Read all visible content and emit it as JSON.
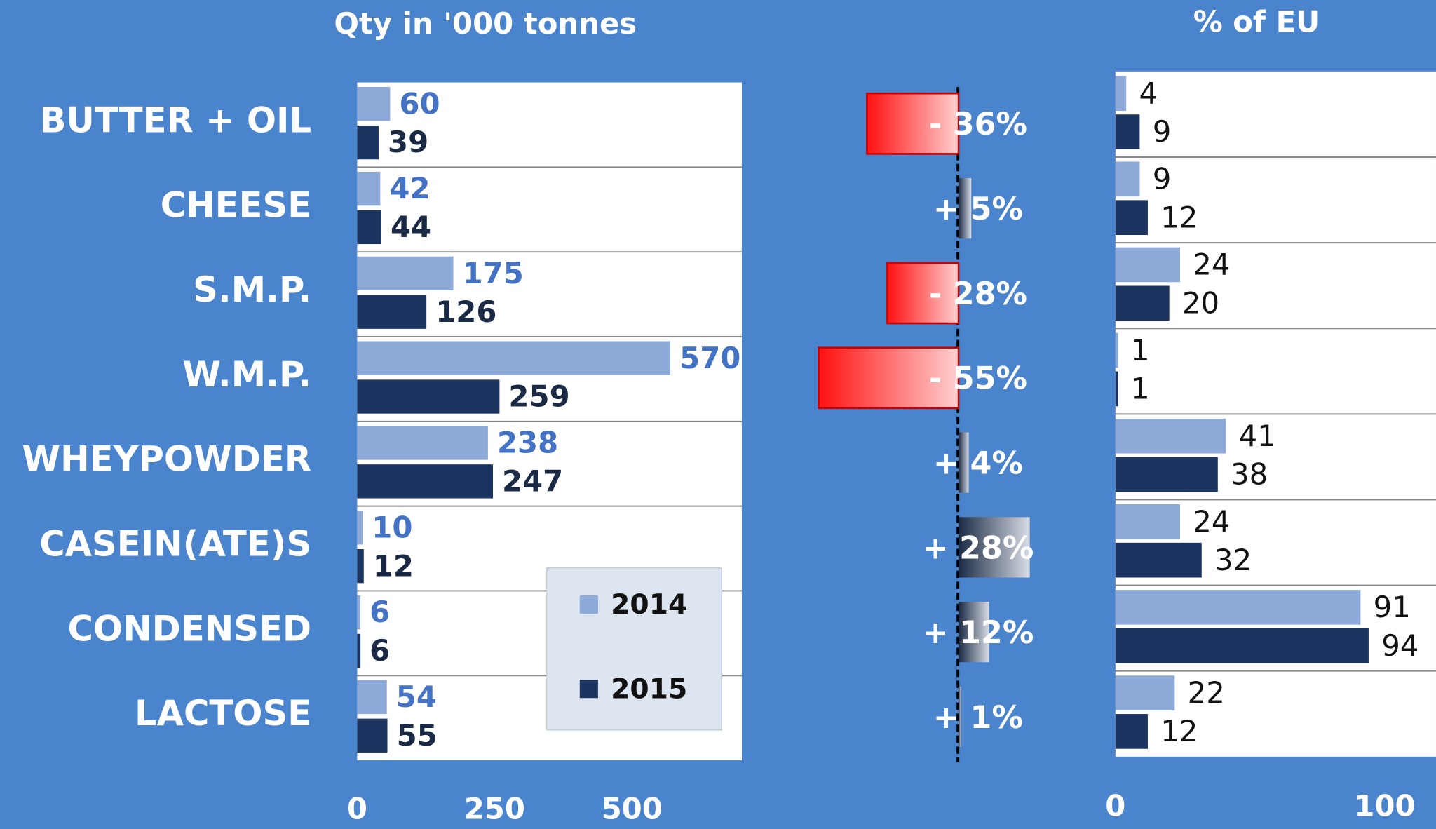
{
  "chart_data": [
    {
      "type": "bar",
      "orientation": "horizontal",
      "title": "Qty in '000 tonnes",
      "categories": [
        "BUTTER + OIL",
        "CHEESE",
        "S.M.P.",
        "W.M.P.",
        "WHEYPOWDER",
        "CASEIN(ATE)S",
        "CONDENSED",
        "LACTOSE"
      ],
      "series": [
        {
          "name": "2014",
          "color": "#8eaad8",
          "values": [
            60,
            42,
            175,
            570,
            238,
            10,
            6,
            54
          ]
        },
        {
          "name": "2015",
          "color": "#1b3560",
          "values": [
            39,
            44,
            126,
            259,
            247,
            12,
            6,
            55
          ]
        }
      ],
      "xlim": [
        0,
        700
      ],
      "xticks": [
        0,
        250,
        500
      ],
      "legend": "lower right"
    },
    {
      "type": "bar",
      "orientation": "horizontal",
      "values": [
        -36,
        5,
        -28,
        -55,
        4,
        28,
        12,
        1
      ],
      "value_labels": [
        "- 36%",
        "+ 5%",
        "- 28%",
        "- 55%",
        "+ 4%",
        "+ 28%",
        "+ 12%",
        "+ 1%"
      ],
      "xlim": [
        -60,
        30
      ]
    },
    {
      "type": "bar",
      "orientation": "horizontal",
      "title": "% of EU",
      "series": [
        {
          "name": "2014",
          "color": "#8eaad8",
          "values": [
            4,
            9,
            24,
            1,
            41,
            24,
            91,
            22
          ]
        },
        {
          "name": "2015",
          "color": "#1b3560",
          "values": [
            9,
            12,
            20,
            1,
            38,
            32,
            94,
            12
          ]
        }
      ],
      "xlim": [
        0,
        119
      ],
      "xticks": [
        0,
        100
      ]
    }
  ]
}
